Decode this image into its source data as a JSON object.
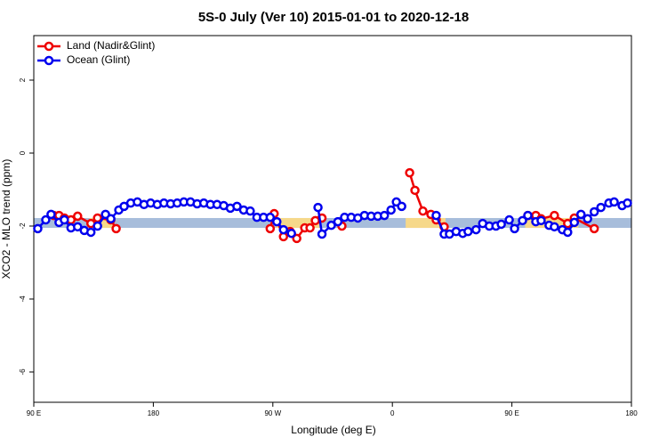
{
  "chart_data": {
    "type": "line",
    "title": "5S-0 July (Ver 10)   2015-01-01 to 2020-12-18",
    "x_label": "Longitude (deg E)",
    "y_label": "XCO2 - MLO trend (ppm)",
    "xlim": [
      -270,
      180
    ],
    "xticks": [
      {
        "value": -270,
        "label": "90 E"
      },
      {
        "value": -180,
        "label": "180"
      },
      {
        "value": -90,
        "label": "90 W"
      },
      0,
      {
        "value": 90,
        "label": "90 E"
      },
      {
        "value": 180,
        "label": "180"
      }
    ],
    "ylim": [
      -6.83,
      3.22
    ],
    "yticks": [
      2,
      0,
      -2,
      -4,
      -6
    ],
    "legend": "top-left",
    "bands": [
      {
        "color": "#a7bddb",
        "x": [
          -270,
          180
        ],
        "y": [
          -2.05,
          -1.78
        ]
      },
      {
        "color": "#f6d88a",
        "x": [
          -228,
          -210
        ],
        "y": [
          -2.05,
          -1.78
        ]
      },
      {
        "color": "#f6d88a",
        "x": [
          -88,
          -55
        ],
        "y": [
          -2.05,
          -1.78
        ]
      },
      {
        "color": "#f6d88a",
        "x": [
          10,
          40
        ],
        "y": [
          -2.05,
          -1.78
        ]
      },
      {
        "color": "#f6d88a",
        "x": [
          100,
          140
        ],
        "y": [
          -2.05,
          -1.78
        ]
      }
    ],
    "series": [
      {
        "name": "Land (Nadir&Glint)",
        "color": "#ee0000",
        "x": [
          -255,
          -251,
          -247,
          -242,
          -237,
          -227,
          -222,
          -212,
          -208,
          null,
          -92,
          -89,
          -82,
          -77,
          -72,
          -66,
          -62,
          -58,
          -53,
          null,
          -38,
          null,
          13,
          17,
          23,
          29,
          33,
          39,
          null,
          102,
          108,
          112,
          122,
          132,
          137,
          152
        ],
        "values": [
          -1.71,
          -1.71,
          -1.78,
          -1.83,
          -1.73,
          -1.93,
          -1.78,
          -1.83,
          -2.07,
          null,
          -2.07,
          -1.66,
          -2.29,
          -2.15,
          -2.34,
          -2.05,
          -2.05,
          -1.85,
          -1.78,
          null,
          -2.0,
          null,
          -0.54,
          -1.02,
          -1.59,
          -1.68,
          -1.83,
          -2.02,
          null,
          -1.71,
          -1.71,
          -1.8,
          -1.71,
          -1.93,
          -1.78,
          -2.07
        ]
      },
      {
        "name": "Ocean (Glint)",
        "color": "#0000ee",
        "x": [
          -267,
          -261,
          -257,
          -251,
          -247,
          -242,
          -237,
          -232,
          -227,
          -222,
          -216,
          -212,
          -206,
          -202,
          -197,
          -192,
          -187,
          -182,
          -177,
          -172,
          -167,
          -162,
          -157,
          -152,
          -147,
          -142,
          -137,
          -132,
          -127,
          -122,
          -117,
          -112,
          -107,
          -102,
          -97,
          -92,
          -87,
          -82,
          -76,
          null,
          -56,
          -53,
          -46,
          -41,
          -36,
          -31,
          -26,
          -21,
          -16,
          -11,
          -6,
          -1,
          3,
          7,
          null,
          33,
          39,
          43,
          48,
          53,
          57,
          63,
          68,
          73,
          78,
          82,
          88,
          92,
          98,
          102,
          108,
          112,
          118,
          122,
          128,
          132,
          137,
          142,
          147,
          152,
          157,
          163,
          167,
          173,
          177
        ],
        "values": [
          -2.07,
          -1.83,
          -1.68,
          -1.9,
          -1.83,
          -2.05,
          -2.02,
          -2.12,
          -2.17,
          -2.0,
          -1.68,
          -1.8,
          -1.56,
          -1.46,
          -1.37,
          -1.34,
          -1.41,
          -1.37,
          -1.41,
          -1.37,
          -1.39,
          -1.37,
          -1.34,
          -1.34,
          -1.39,
          -1.37,
          -1.41,
          -1.41,
          -1.44,
          -1.51,
          -1.46,
          -1.56,
          -1.59,
          -1.76,
          -1.76,
          -1.76,
          -1.88,
          -2.1,
          -2.2,
          null,
          -1.49,
          -2.22,
          -1.98,
          -1.88,
          -1.76,
          -1.76,
          -1.78,
          -1.71,
          -1.73,
          -1.73,
          -1.71,
          -1.56,
          -1.34,
          -1.46,
          null,
          -1.71,
          -2.22,
          -2.22,
          -2.15,
          -2.2,
          -2.15,
          -2.1,
          -1.93,
          -2.0,
          -2.0,
          -1.95,
          -1.83,
          -2.07,
          -1.85,
          -1.71,
          -1.88,
          -1.85,
          -1.98,
          -2.02,
          -2.1,
          -2.17,
          -1.9,
          -1.68,
          -1.8,
          -1.61,
          -1.49,
          -1.37,
          -1.34,
          -1.44,
          -1.37
        ]
      }
    ]
  }
}
